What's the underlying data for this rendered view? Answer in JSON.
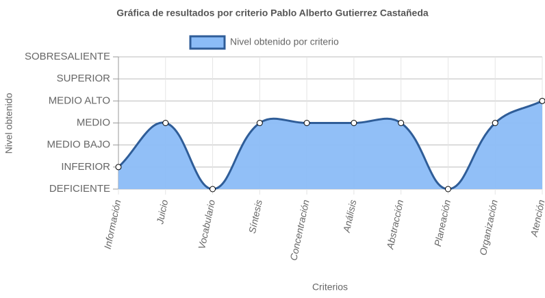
{
  "chart_data": {
    "type": "line",
    "title": "Gráfica de resultados por criterio Pablo Alberto Gutierrez Castañeda",
    "x_label": "Criterios",
    "y_label": "Nivel obtenido",
    "categories": [
      "Información",
      "Juicio",
      "Vocabulario",
      "Síntesis",
      "Concentración",
      "Análisis",
      "Abstracción",
      "Planeación",
      "Organización",
      "Atención"
    ],
    "series": [
      {
        "name": "Nivel obtenido por criterio",
        "color": "#2f5d98",
        "fill_color": "#8bbcf7",
        "values": [
          1,
          3,
          0,
          3,
          3,
          3,
          3,
          0,
          3,
          4
        ]
      }
    ],
    "ylim": [
      0,
      6
    ],
    "yticks": [
      {
        "value": 0,
        "label": "DEFICIENTE"
      },
      {
        "value": 1,
        "label": "INFERIOR"
      },
      {
        "value": 2,
        "label": "MEDIO BAJO"
      },
      {
        "value": 3,
        "label": "MEDIO"
      },
      {
        "value": 4,
        "label": "MEDIO ALTO"
      },
      {
        "value": 5,
        "label": "SUPERIOR"
      },
      {
        "value": 6,
        "label": "SOBRESALIENTE"
      }
    ],
    "fill": true,
    "grid": true,
    "legend": "top"
  }
}
